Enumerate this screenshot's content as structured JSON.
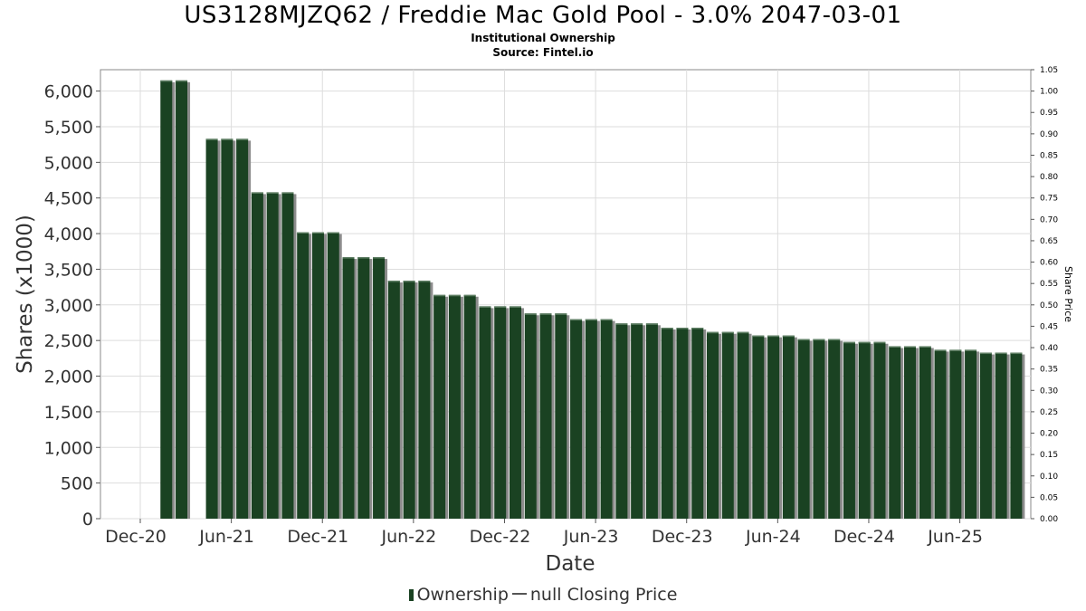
{
  "header": {
    "title": "US3128MJZQ62 / Freddie Mac Gold Pool - 3.0% 2047-03-01",
    "subtitle": "Institutional Ownership",
    "source": "Source: Fintel.io"
  },
  "legend": {
    "ownership": "Ownership",
    "price": "null Closing Price"
  },
  "colors": {
    "bar": "#1a4222",
    "bar_shadow": "#8c8c8c",
    "grid": "#dddddd",
    "frame": "#888888"
  },
  "chart_data": {
    "type": "bar",
    "title": "US3128MJZQ62 / Freddie Mac Gold Pool - 3.0% 2047-03-01",
    "xlabel": "Date",
    "ylabel": "Shares (x1000)",
    "y2label": "Share Price",
    "ylim": [
      0,
      6300
    ],
    "y2lim": [
      0,
      1.05
    ],
    "grid": true,
    "legend_position": "bottom",
    "x_ticks": [
      "Dec-20",
      "Jun-21",
      "Dec-21",
      "Jun-22",
      "Dec-22",
      "Jun-23",
      "Dec-23",
      "Jun-24",
      "Dec-24",
      "Jun-25"
    ],
    "y_ticks": [
      "0",
      "500",
      "1,000",
      "1,500",
      "2,000",
      "2,500",
      "3,000",
      "3,500",
      "4,000",
      "4,500",
      "5,000",
      "5,500",
      "6,000"
    ],
    "y2_ticks": [
      "0.00",
      "0.05",
      "0.10",
      "0.15",
      "0.20",
      "0.25",
      "0.30",
      "0.35",
      "0.40",
      "0.45",
      "0.50",
      "0.55",
      "0.60",
      "0.65",
      "0.70",
      "0.75",
      "0.80",
      "0.85",
      "0.90",
      "0.95",
      "1.00",
      "1.05"
    ],
    "series": [
      {
        "name": "Ownership",
        "x": [
          "2021-01",
          "2021-02",
          "2021-04",
          "2021-05",
          "2021-06",
          "2021-07",
          "2021-08",
          "2021-09",
          "2021-10",
          "2021-11",
          "2021-12",
          "2022-01",
          "2022-02",
          "2022-03",
          "2022-04",
          "2022-05",
          "2022-06",
          "2022-07",
          "2022-08",
          "2022-09",
          "2022-10",
          "2022-11",
          "2022-12",
          "2023-01",
          "2023-02",
          "2023-03",
          "2023-04",
          "2023-05",
          "2023-06",
          "2023-07",
          "2023-08",
          "2023-09",
          "2023-10",
          "2023-11",
          "2023-12",
          "2024-01",
          "2024-02",
          "2024-03",
          "2024-04",
          "2024-05",
          "2024-06",
          "2024-07",
          "2024-08",
          "2024-09",
          "2024-10",
          "2024-11",
          "2024-12",
          "2025-01",
          "2025-02",
          "2025-03",
          "2025-04",
          "2025-05",
          "2025-06",
          "2025-07",
          "2025-08",
          "2025-09"
        ],
        "values": [
          6150,
          6150,
          5330,
          5330,
          5330,
          4580,
          4580,
          4580,
          4020,
          4020,
          4020,
          3670,
          3670,
          3670,
          3340,
          3340,
          3340,
          3140,
          3140,
          3140,
          2980,
          2980,
          2980,
          2880,
          2880,
          2880,
          2800,
          2800,
          2800,
          2740,
          2740,
          2740,
          2680,
          2680,
          2680,
          2620,
          2620,
          2620,
          2570,
          2570,
          2570,
          2520,
          2520,
          2520,
          2480,
          2480,
          2480,
          2420,
          2420,
          2420,
          2370,
          2370,
          2370,
          2330,
          2330,
          2330
        ]
      },
      {
        "name": "null Closing Price",
        "values": []
      }
    ]
  }
}
